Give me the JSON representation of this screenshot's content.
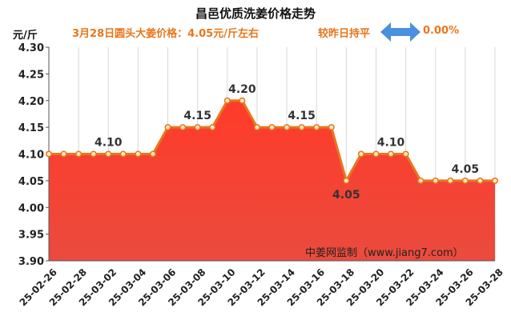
{
  "header": {
    "title": "昌邑优质洗姜价格走势",
    "unit": "元/斤",
    "subtitle": "3月28日圆头大姜价格：4.05元/斤左右",
    "compare": "较昨日持平",
    "change_pct": "0.00%",
    "arrow_icon": "double-arrow-icon",
    "watermark": "中姜网监制（www.jiang7.com）"
  },
  "colors": {
    "accent": "#e8761c",
    "fill_top": "#ff3b2a",
    "fill_bottom": "#ea4b3e",
    "line": "#e8761c",
    "marker_fill": "#ffe7c2",
    "arrow": "#4a8fe0"
  },
  "chart_data": {
    "type": "area",
    "title": "昌邑优质洗姜价格走势",
    "ylabel": "元/斤",
    "ylim": [
      3.9,
      4.3
    ],
    "y_ticks": [
      "4.30",
      "4.25",
      "4.20",
      "4.15",
      "4.10",
      "4.05",
      "4.00",
      "3.95",
      "3.90"
    ],
    "x_tick_labels": [
      "25-02-26",
      "25-02-28",
      "25-03-02",
      "25-03-04",
      "25-03-06",
      "25-03-08",
      "25-03-10",
      "25-03-12",
      "25-03-14",
      "25-03-16",
      "25-03-18",
      "25-03-20",
      "25-03-22",
      "25-03-24",
      "25-03-26",
      "25-03-28"
    ],
    "values": [
      4.1,
      4.1,
      4.1,
      4.1,
      4.1,
      4.1,
      4.1,
      4.1,
      4.15,
      4.15,
      4.15,
      4.15,
      4.2,
      4.2,
      4.15,
      4.15,
      4.15,
      4.15,
      4.15,
      4.15,
      4.05,
      4.1,
      4.1,
      4.1,
      4.1,
      4.05,
      4.05,
      4.05,
      4.05,
      4.05,
      4.05
    ],
    "annotations": [
      {
        "index": 4,
        "text": "4.10",
        "pos": "above"
      },
      {
        "index": 10,
        "text": "4.15",
        "pos": "above"
      },
      {
        "index": 13,
        "text": "4.20",
        "pos": "above"
      },
      {
        "index": 17,
        "text": "4.15",
        "pos": "above"
      },
      {
        "index": 20,
        "text": "4.05",
        "pos": "below"
      },
      {
        "index": 23,
        "text": "4.10",
        "pos": "above"
      },
      {
        "index": 28,
        "text": "4.05",
        "pos": "above"
      }
    ],
    "grid": "vertical"
  }
}
